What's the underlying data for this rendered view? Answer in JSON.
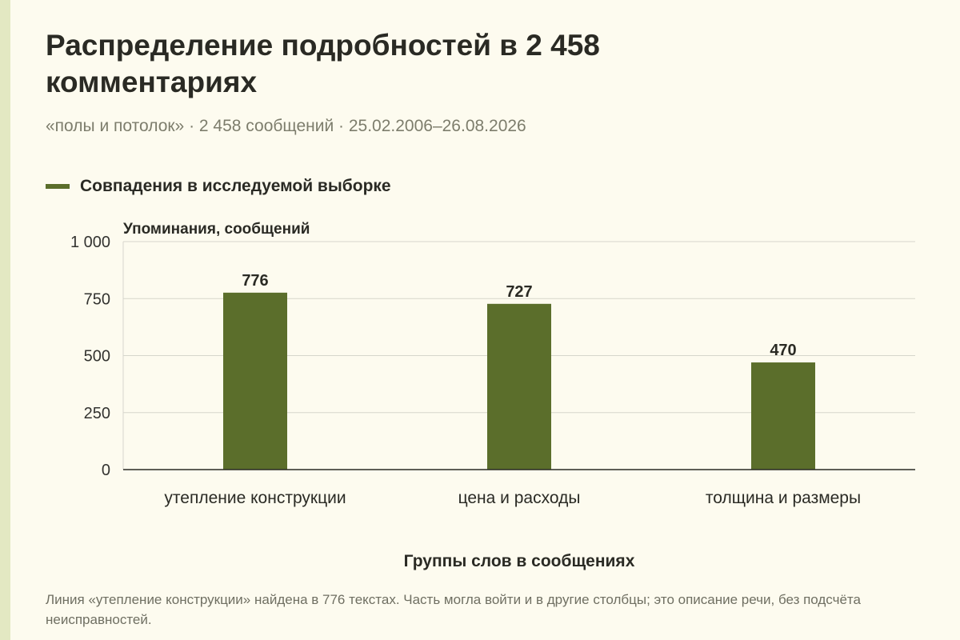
{
  "header": {
    "title": "Распределение подробностей в 2 458 комментариях",
    "subtitle": "«полы и потолок» · 2 458 сообщений · 25.02.2006–26.08.2026"
  },
  "legend": {
    "label": "Совпадения в исследуемой выборке"
  },
  "colors": {
    "bar": "#5b6e2b",
    "grid": "#d6d6cc",
    "axis": "#2a2a24",
    "background": "#fdfbef"
  },
  "chart_data": {
    "type": "bar",
    "categories": [
      "утепление конструкции",
      "цена и расходы",
      "толщина и размеры"
    ],
    "series": [
      {
        "name": "Совпадения в исследуемой выборке",
        "values": [
          776,
          727,
          470
        ]
      }
    ],
    "data_labels": [
      "776",
      "727",
      "470"
    ],
    "yticks": [
      0,
      250,
      500,
      750,
      1000
    ],
    "ytick_labels": [
      "0",
      "250",
      "500",
      "750",
      "1 000"
    ],
    "ylim": [
      0,
      1000
    ],
    "ylabel": "Упоминания, сообщений",
    "xlabel": "Группы слов в сообщениях",
    "grid": true,
    "legend_position": "top-left"
  },
  "footnote": {
    "text": "Линия «утепление конструкции» найдена в 776 текстах. Часть могла войти и в другие столбцы; это описание речи, без подсчёта неисправностей."
  }
}
